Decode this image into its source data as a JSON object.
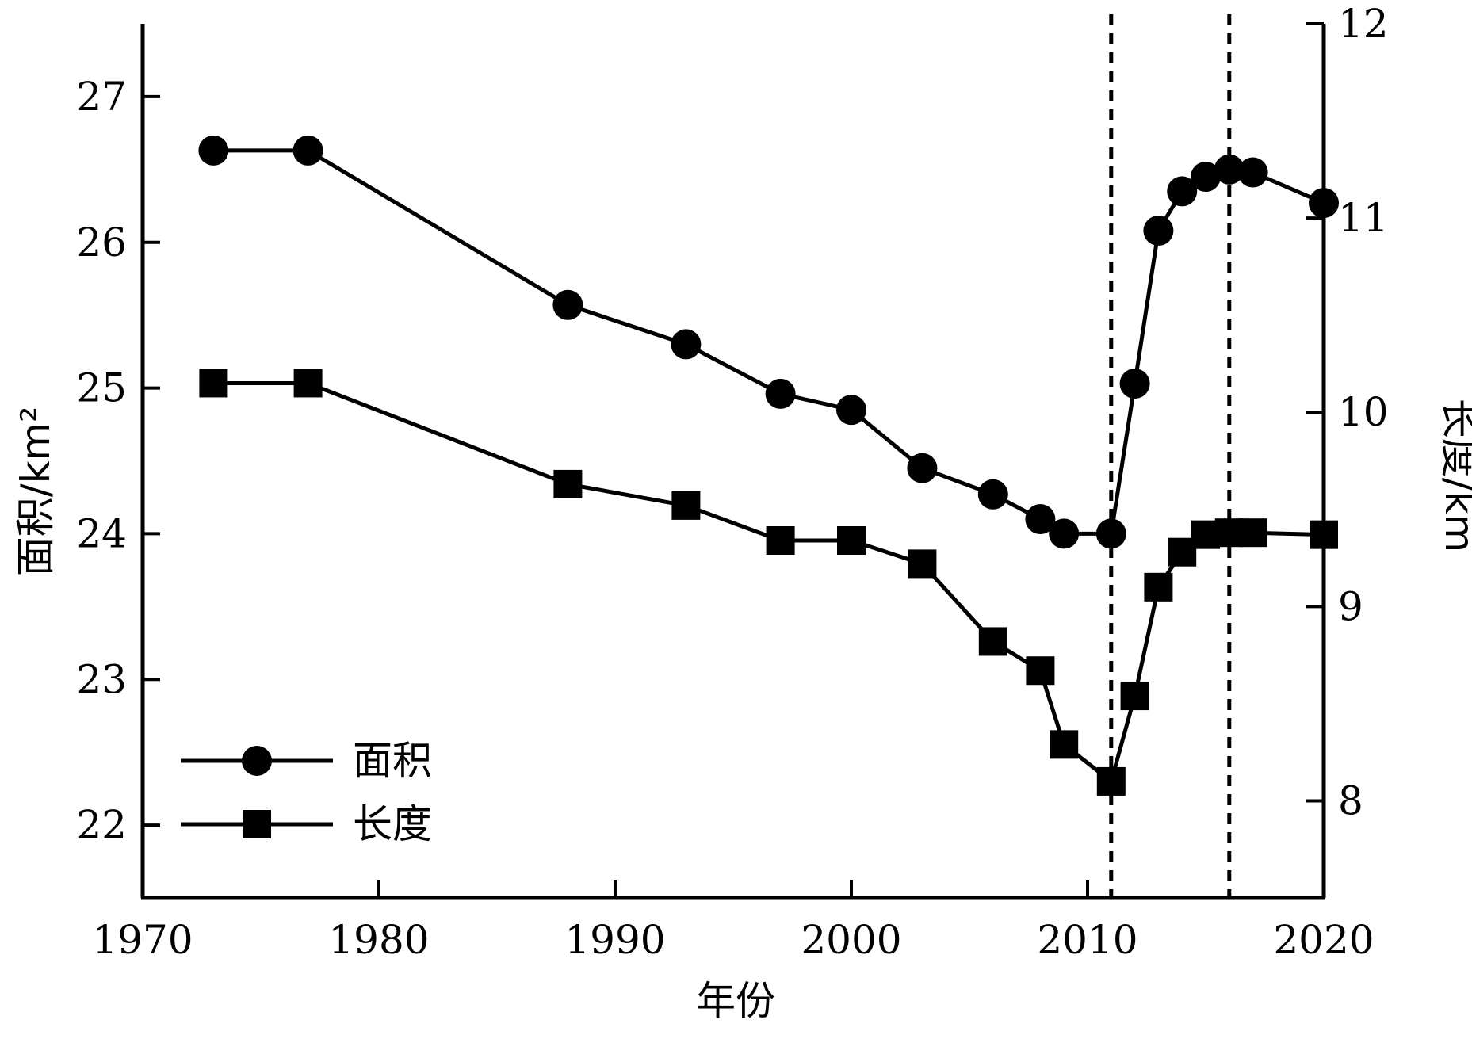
{
  "chart_data": {
    "type": "line",
    "xlabel": "年份",
    "ylabel_left": "面积/km²",
    "ylabel_right": "长度/km",
    "xlim": [
      1970,
      2020
    ],
    "ylim_left": [
      21.5,
      27.5
    ],
    "ylim_right": [
      7.5,
      12
    ],
    "x_ticks": [
      1970,
      1980,
      1990,
      2000,
      2010,
      2020
    ],
    "y_left_ticks": [
      22,
      23,
      24,
      25,
      26,
      27
    ],
    "y_right_ticks": [
      8,
      9,
      10,
      11,
      12
    ],
    "vertical_dashed_lines": [
      2011,
      2016
    ],
    "grid": false,
    "legend_position": "bottom-left",
    "series": [
      {
        "name": "面积",
        "axis": "left",
        "marker": "circle",
        "x": [
          1973,
          1977,
          1988,
          1993,
          1997,
          2000,
          2003,
          2006,
          2008,
          2009,
          2011,
          2012,
          2013,
          2014,
          2015,
          2016,
          2017,
          2020
        ],
        "values": [
          26.63,
          26.63,
          25.57,
          25.3,
          24.96,
          24.85,
          24.45,
          24.27,
          24.1,
          24.0,
          24.0,
          25.03,
          26.08,
          26.35,
          26.45,
          26.5,
          26.48,
          26.27
        ]
      },
      {
        "name": "长度",
        "axis": "right",
        "marker": "square",
        "x": [
          1973,
          1977,
          1988,
          1993,
          1997,
          2000,
          2003,
          2006,
          2008,
          2009,
          2011,
          2012,
          2013,
          2014,
          2015,
          2016,
          2017,
          2020
        ],
        "values": [
          10.15,
          10.15,
          9.63,
          9.52,
          9.34,
          9.34,
          9.22,
          8.82,
          8.67,
          8.29,
          8.1,
          8.54,
          9.1,
          9.28,
          9.37,
          9.38,
          9.38,
          9.37
        ]
      }
    ]
  }
}
